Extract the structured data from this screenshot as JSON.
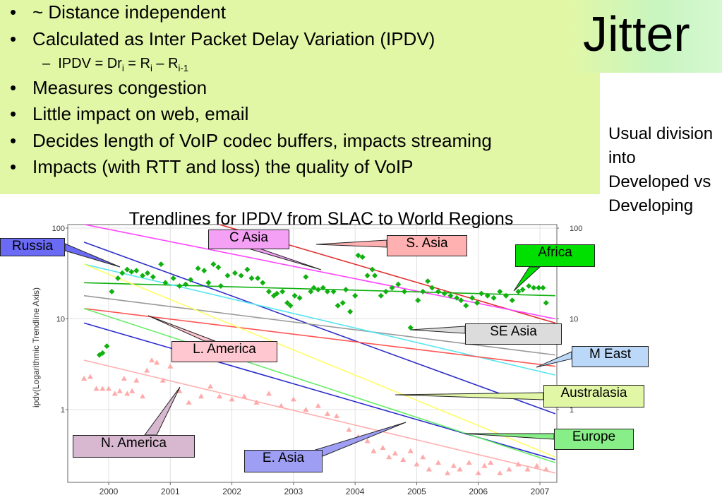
{
  "slide_title": "Jitter",
  "bullets": [
    {
      "text": "~ Distance independent"
    },
    {
      "text": "Calculated as Inter Packet Delay Variation (IPDV)"
    },
    {
      "text": "Measures congestion"
    },
    {
      "text": "Little impact on web, email"
    },
    {
      "text": "Decides length of VoIP codec buffers, impacts streaming"
    },
    {
      "text": "Impacts (with RTT and loss) the quality of VoIP"
    }
  ],
  "bullet_glyph": "•",
  "sub_bullet": {
    "dash": "–",
    "prefix": "IPDV = Dr",
    "sub1": "i",
    "mid": " = R",
    "sub2": "i",
    "sep": " – R",
    "sub3": "i-1"
  },
  "side_note": "Usual division into Developed vs Developing",
  "chart_data": {
    "type": "scatter",
    "title": "Trendlines for IPDV from SLAC to World Regions",
    "ylabel": "ipdv(Logarithmic Trendline Axis)",
    "xlabel": "",
    "x_ticks": [
      "2000",
      "2001",
      "2002",
      "2003",
      "2004",
      "2005",
      "2006",
      "2007"
    ],
    "y_ticks": [
      "100",
      "10",
      "1"
    ],
    "xlim": [
      1999.55,
      2007.45
    ],
    "ylim_log": [
      0.12,
      130
    ],
    "y_scale": "log",
    "grid": true,
    "trendlines": [
      {
        "name": "S. Asia",
        "color": "#e03030",
        "y": [
          300,
          9
        ]
      },
      {
        "name": "C Asia",
        "color": "#ff44ff",
        "y": [
          110,
          10
        ]
      },
      {
        "name": "Africa",
        "color": "#10b010",
        "y": [
          25,
          18
        ]
      },
      {
        "name": "Russia",
        "color": "#3030c8",
        "y": [
          70,
          0.9
        ]
      },
      {
        "name": "SE Asia",
        "color": "#999999",
        "y": [
          18,
          4
        ]
      },
      {
        "name": "M East",
        "color": "#55e5f0",
        "y": [
          40,
          2.4
        ]
      },
      {
        "name": "L. America",
        "color": "#ff5555",
        "y": [
          13,
          3
        ]
      },
      {
        "name": "Australasia",
        "color": "#ffff66",
        "y": [
          40,
          0.3
        ]
      },
      {
        "name": "E. Asia",
        "color": "#2a2ad0",
        "y": [
          9,
          0.28
        ]
      },
      {
        "name": "Europe",
        "color": "#66ee66",
        "y": [
          13,
          0.26
        ]
      },
      {
        "name": "N. America",
        "color": "#ffb0b0",
        "y": [
          3.5,
          0.2
        ]
      }
    ],
    "africa_points": [
      [
        1999.85,
        4
      ],
      [
        1999.9,
        4.2
      ],
      [
        1999.97,
        5
      ],
      [
        2000.05,
        20
      ],
      [
        2000.15,
        28
      ],
      [
        2000.22,
        32
      ],
      [
        2000.3,
        35
      ],
      [
        2000.37,
        33
      ],
      [
        2000.45,
        34
      ],
      [
        2000.55,
        30
      ],
      [
        2000.63,
        32
      ],
      [
        2000.72,
        29
      ],
      [
        2000.85,
        40
      ],
      [
        2000.92,
        25
      ],
      [
        2001.05,
        28
      ],
      [
        2001.15,
        23
      ],
      [
        2001.25,
        24
      ],
      [
        2001.33,
        27
      ],
      [
        2001.45,
        36
      ],
      [
        2001.55,
        34
      ],
      [
        2001.62,
        25
      ],
      [
        2001.7,
        40
      ],
      [
        2001.78,
        37
      ],
      [
        2001.82,
        23
      ],
      [
        2001.93,
        30
      ],
      [
        2002.05,
        32
      ],
      [
        2002.15,
        30
      ],
      [
        2002.25,
        35
      ],
      [
        2002.32,
        28
      ],
      [
        2002.42,
        28
      ],
      [
        2002.5,
        25
      ],
      [
        2002.6,
        20
      ],
      [
        2002.68,
        18
      ],
      [
        2002.73,
        19
      ],
      [
        2002.82,
        20
      ],
      [
        2002.9,
        15
      ],
      [
        2002.95,
        14
      ],
      [
        2003.02,
        18
      ],
      [
        2003.1,
        17
      ],
      [
        2003.2,
        29
      ],
      [
        2003.28,
        20
      ],
      [
        2003.33,
        22
      ],
      [
        2003.4,
        21
      ],
      [
        2003.48,
        22
      ],
      [
        2003.55,
        20
      ],
      [
        2003.65,
        20
      ],
      [
        2003.72,
        14
      ],
      [
        2003.8,
        15
      ],
      [
        2003.85,
        21
      ],
      [
        2003.92,
        12
      ],
      [
        2004.0,
        18
      ],
      [
        2004.05,
        50
      ],
      [
        2004.12,
        48
      ],
      [
        2004.2,
        30
      ],
      [
        2004.28,
        35
      ],
      [
        2004.32,
        30
      ],
      [
        2004.42,
        18
      ],
      [
        2004.5,
        20
      ],
      [
        2004.6,
        22
      ],
      [
        2004.7,
        24
      ],
      [
        2004.8,
        20
      ],
      [
        2004.9,
        8
      ],
      [
        2005.02,
        16
      ],
      [
        2005.1,
        20
      ],
      [
        2005.18,
        26
      ],
      [
        2005.25,
        22
      ],
      [
        2005.35,
        20
      ],
      [
        2005.45,
        19
      ],
      [
        2005.55,
        18
      ],
      [
        2005.65,
        17
      ],
      [
        2005.72,
        16
      ],
      [
        2005.8,
        14
      ],
      [
        2005.9,
        17
      ],
      [
        2005.98,
        15
      ],
      [
        2006.05,
        19
      ],
      [
        2006.15,
        18
      ],
      [
        2006.25,
        17
      ],
      [
        2006.35,
        20
      ],
      [
        2006.45,
        18
      ],
      [
        2006.55,
        16
      ],
      [
        2006.65,
        20
      ],
      [
        2006.72,
        21
      ],
      [
        2006.82,
        23
      ],
      [
        2006.9,
        22
      ],
      [
        2006.98,
        22
      ],
      [
        2007.05,
        22
      ],
      [
        2007.1,
        15
      ]
    ],
    "namerica_points": [
      [
        1999.6,
        2.2
      ],
      [
        1999.7,
        2.3
      ],
      [
        1999.8,
        1.7
      ],
      [
        1999.9,
        1.7
      ],
      [
        2000.0,
        1.7
      ],
      [
        2000.1,
        1.5
      ],
      [
        2000.18,
        1.6
      ],
      [
        2000.25,
        2.2
      ],
      [
        2000.3,
        1.5
      ],
      [
        2000.38,
        1.6
      ],
      [
        2000.45,
        2.1
      ],
      [
        2000.55,
        1.4
      ],
      [
        2000.62,
        2.7
      ],
      [
        2000.7,
        3.5
      ],
      [
        2000.78,
        3.3
      ],
      [
        2000.88,
        2.1
      ],
      [
        2001.0,
        3.0
      ],
      [
        2001.15,
        1.6
      ],
      [
        2001.3,
        1.2
      ],
      [
        2001.5,
        1.4
      ],
      [
        2001.65,
        1.8
      ],
      [
        2001.8,
        1.4
      ],
      [
        2002.0,
        1.3
      ],
      [
        2002.2,
        1.4
      ],
      [
        2002.4,
        1.2
      ],
      [
        2002.6,
        1.5
      ],
      [
        2002.8,
        1.1
      ],
      [
        2003.0,
        1.3
      ],
      [
        2003.2,
        1.0
      ],
      [
        2003.4,
        1.1
      ],
      [
        2003.55,
        0.9
      ],
      [
        2003.7,
        0.85
      ],
      [
        2003.9,
        0.6
      ],
      [
        2004.05,
        0.5
      ],
      [
        2004.2,
        0.45
      ],
      [
        2004.3,
        0.35
      ],
      [
        2004.45,
        0.38
      ],
      [
        2004.55,
        0.3
      ],
      [
        2004.65,
        0.33
      ],
      [
        2004.78,
        0.28
      ],
      [
        2004.9,
        0.35
      ],
      [
        2005.0,
        0.25
      ],
      [
        2005.1,
        0.3
      ],
      [
        2005.2,
        0.22
      ],
      [
        2005.35,
        0.26
      ],
      [
        2005.5,
        0.2
      ],
      [
        2005.6,
        0.24
      ],
      [
        2005.7,
        0.22
      ],
      [
        2005.85,
        0.26
      ],
      [
        2006.0,
        0.2
      ],
      [
        2006.1,
        0.24
      ],
      [
        2006.2,
        0.26
      ],
      [
        2006.35,
        0.2
      ],
      [
        2006.5,
        0.22
      ],
      [
        2006.65,
        0.25
      ],
      [
        2006.8,
        0.22
      ],
      [
        2006.95,
        0.24
      ],
      [
        2007.1,
        0.22
      ]
    ]
  },
  "colors": {
    "box_green": "#e2f7a6",
    "label_pink": "#ffc8d0",
    "label_violet": "#f4a0f4",
    "label_salmon": "#ffb0b0",
    "label_blue": "#6a6af5",
    "label_green": "#00e000",
    "label_grey": "#dcdcdc",
    "label_lightblue": "#bcd8f8",
    "label_yellowgreen": "#e2f7a6",
    "label_mauve": "#d8b8d0",
    "label_lavender": "#9e9ef5",
    "label_brightgreen": "#88ee88"
  },
  "callouts": [
    {
      "text": "Russia"
    },
    {
      "text": "C Asia"
    },
    {
      "text": "S. Asia"
    },
    {
      "text": "Africa"
    },
    {
      "text": "SE Asia"
    },
    {
      "text": "L. America"
    },
    {
      "text": "M East"
    },
    {
      "text": "Australasia"
    },
    {
      "text": "N. America"
    },
    {
      "text": "E. Asia"
    },
    {
      "text": "Europe"
    }
  ]
}
